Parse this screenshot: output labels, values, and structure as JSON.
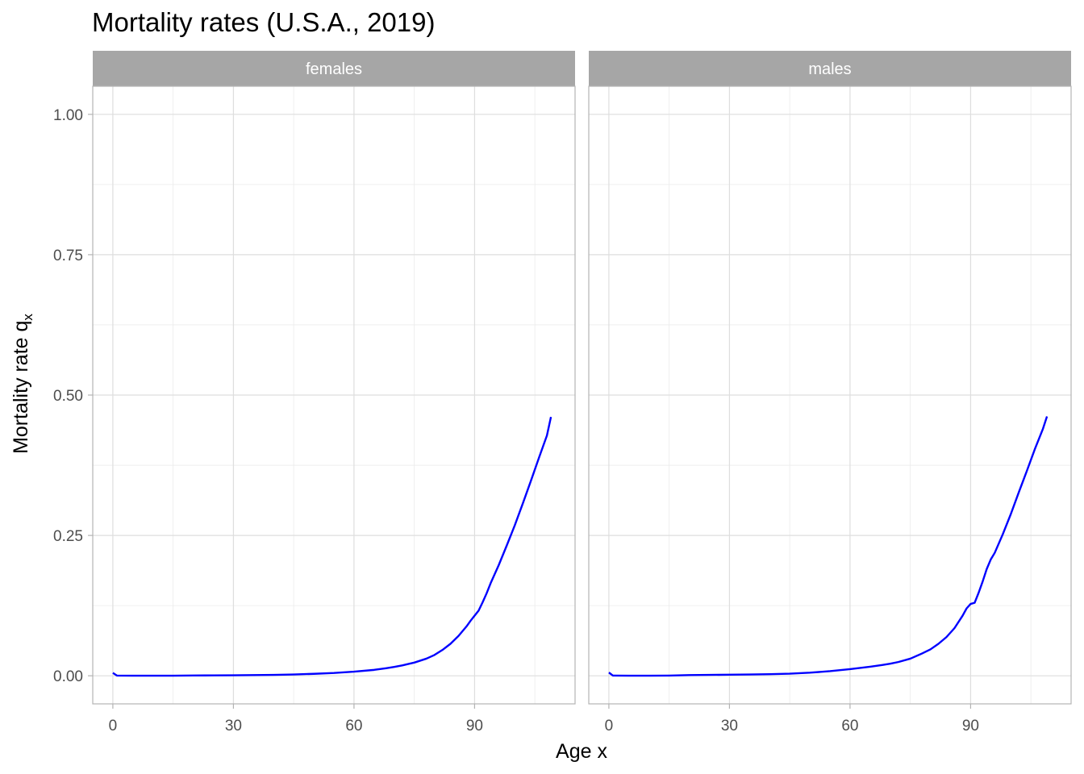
{
  "chart_data": {
    "type": "line",
    "title": "Mortality rates (U.S.A., 2019)",
    "xlabel": "Age x",
    "ylabel": "Mortality rate q",
    "ylabel_subscript": "x",
    "xlim": [
      -5,
      115
    ],
    "ylim": [
      -0.05,
      1.05
    ],
    "xticks": [
      0,
      30,
      60,
      90
    ],
    "xtick_labels": [
      "0",
      "30",
      "60",
      "90"
    ],
    "yticks": [
      0,
      0.25,
      0.5,
      0.75,
      1.0
    ],
    "ytick_labels": [
      "0.00",
      "0.25",
      "0.50",
      "0.75",
      "1.00"
    ],
    "grid": true,
    "line_color": "#0000ff",
    "strip_color": "#a6a6a6",
    "facets": [
      {
        "name": "females",
        "x": [
          0,
          1,
          5,
          10,
          15,
          20,
          25,
          30,
          35,
          40,
          45,
          50,
          55,
          60,
          65,
          68,
          70,
          72,
          75,
          78,
          80,
          82,
          84,
          86,
          88,
          89,
          90,
          91,
          92,
          93,
          94,
          95,
          96,
          98,
          100,
          102,
          104,
          106,
          108,
          109
        ],
        "values": [
          0.0052,
          0.0004,
          0.0001,
          0.0001,
          0.0002,
          0.0005,
          0.0007,
          0.0009,
          0.0012,
          0.0016,
          0.0023,
          0.0035,
          0.005,
          0.0073,
          0.0105,
          0.0135,
          0.0158,
          0.0185,
          0.0235,
          0.0305,
          0.037,
          0.046,
          0.057,
          0.071,
          0.088,
          0.098,
          0.107,
          0.116,
          0.131,
          0.147,
          0.165,
          0.181,
          0.197,
          0.232,
          0.268,
          0.307,
          0.347,
          0.388,
          0.428,
          0.461
        ]
      },
      {
        "name": "males",
        "x": [
          0,
          1,
          5,
          10,
          15,
          20,
          25,
          30,
          35,
          40,
          45,
          50,
          55,
          60,
          65,
          68,
          70,
          72,
          75,
          78,
          80,
          82,
          84,
          86,
          88,
          89,
          90,
          91,
          92,
          93,
          94,
          95,
          96,
          98,
          100,
          102,
          104,
          106,
          108,
          109
        ],
        "values": [
          0.0058,
          0.0004,
          0.0001,
          0.0001,
          0.0004,
          0.0012,
          0.0016,
          0.0019,
          0.0023,
          0.0028,
          0.0037,
          0.0055,
          0.0082,
          0.0118,
          0.0162,
          0.0192,
          0.0215,
          0.0245,
          0.0305,
          0.04,
          0.047,
          0.057,
          0.069,
          0.085,
          0.107,
          0.12,
          0.128,
          0.13,
          0.148,
          0.168,
          0.19,
          0.207,
          0.219,
          0.252,
          0.288,
          0.327,
          0.365,
          0.404,
          0.44,
          0.462
        ]
      }
    ]
  }
}
